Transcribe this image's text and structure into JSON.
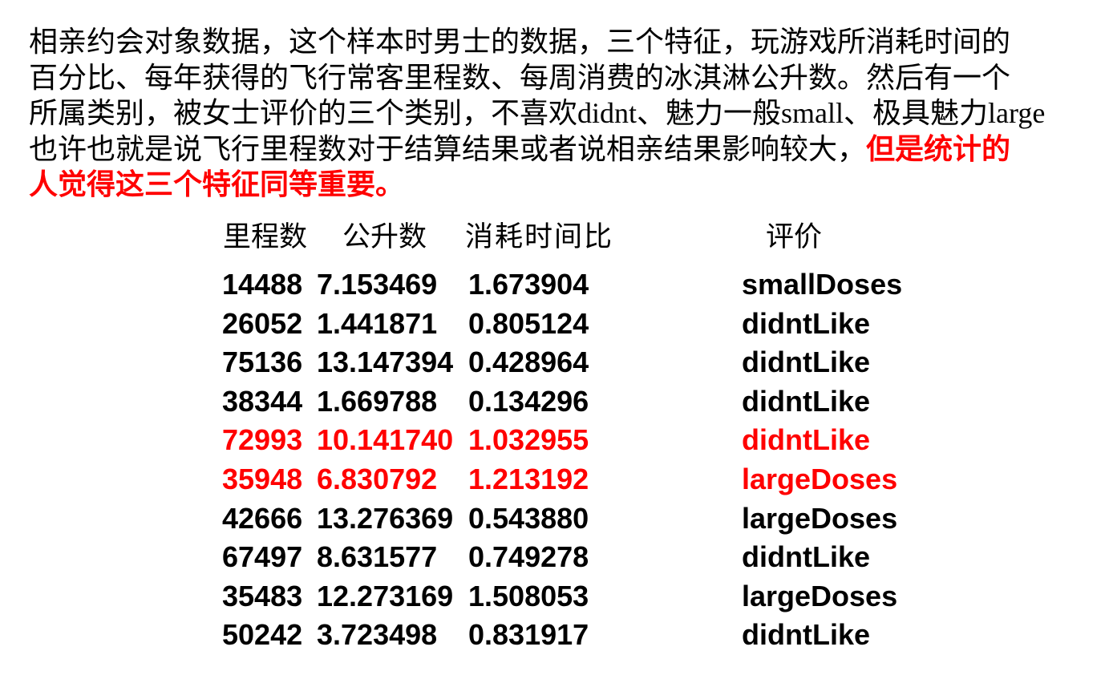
{
  "colors": {
    "text": "#000000",
    "highlight": "#ff0000",
    "background": "#ffffff"
  },
  "paragraph": {
    "line1": "相亲约会对象数据，这个样本时男士的数据，三个特征，玩游戏所消耗时间的",
    "line2": "百分比、每年获得的飞行常客里程数、每周消费的冰淇淋公升数。然后有一个",
    "line3": "所属类别，被女士评价的三个类别，不喜欢didnt、魅力一般small、极具魅力large",
    "line4_black": "也许也就是说飞行里程数对于结算结果或者说相亲结果影响较大，",
    "line4_red": "但是统计的",
    "line5_red": "人觉得这三个特征同等重要。"
  },
  "table": {
    "headers": {
      "mileage": "里程数",
      "liters": "公升数",
      "time_ratio": "消耗时间比",
      "rating": "评价"
    },
    "rows": [
      {
        "mileage": "14488",
        "liters": "7.153469",
        "time_ratio": "1.673904",
        "rating": "smallDoses",
        "highlight": false
      },
      {
        "mileage": "26052",
        "liters": "1.441871",
        "time_ratio": "0.805124",
        "rating": "didntLike",
        "highlight": false
      },
      {
        "mileage": "75136",
        "liters": "13.147394",
        "time_ratio": "0.428964",
        "rating": "didntLike",
        "highlight": false
      },
      {
        "mileage": "38344",
        "liters": "1.669788",
        "time_ratio": "0.134296",
        "rating": "didntLike",
        "highlight": false
      },
      {
        "mileage": "72993",
        "liters": "10.141740",
        "time_ratio": "1.032955",
        "rating": "didntLike",
        "highlight": true
      },
      {
        "mileage": "35948",
        "liters": "6.830792",
        "time_ratio": "1.213192",
        "rating": "largeDoses",
        "highlight": true
      },
      {
        "mileage": "42666",
        "liters": "13.276369",
        "time_ratio": "0.543880",
        "rating": "largeDoses",
        "highlight": false
      },
      {
        "mileage": "67497",
        "liters": "8.631577",
        "time_ratio": "0.749278",
        "rating": "didntLike",
        "highlight": false
      },
      {
        "mileage": "35483",
        "liters": "12.273169",
        "time_ratio": "1.508053",
        "rating": "largeDoses",
        "highlight": false
      },
      {
        "mileage": "50242",
        "liters": "3.723498",
        "time_ratio": "0.831917",
        "rating": "didntLike",
        "highlight": false
      }
    ]
  }
}
